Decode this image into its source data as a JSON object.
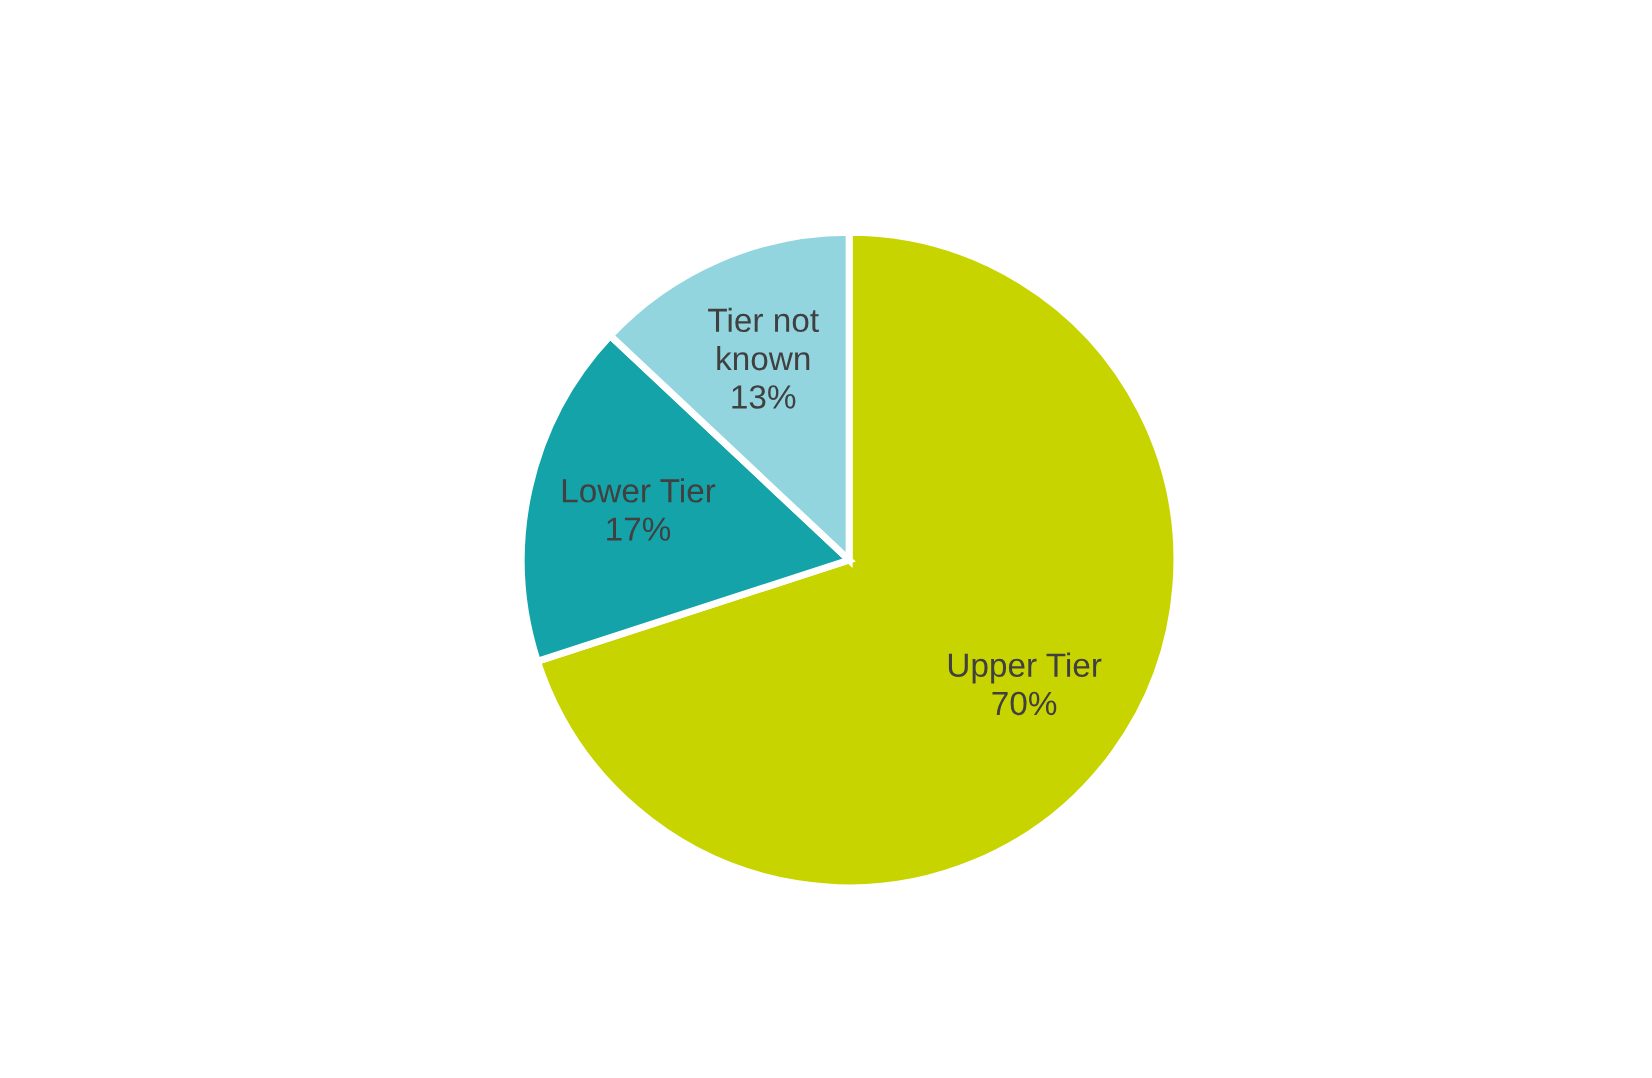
{
  "chart_data": {
    "type": "pie",
    "categories": [
      "Upper Tier",
      "Lower Tier",
      "Tier not\nknown"
    ],
    "values": [
      70,
      17,
      13
    ],
    "colors": [
      "#c8d400",
      "#14a3a9",
      "#92d5de"
    ],
    "value_labels": [
      "70%",
      "17%",
      "13%"
    ],
    "legend": false
  }
}
